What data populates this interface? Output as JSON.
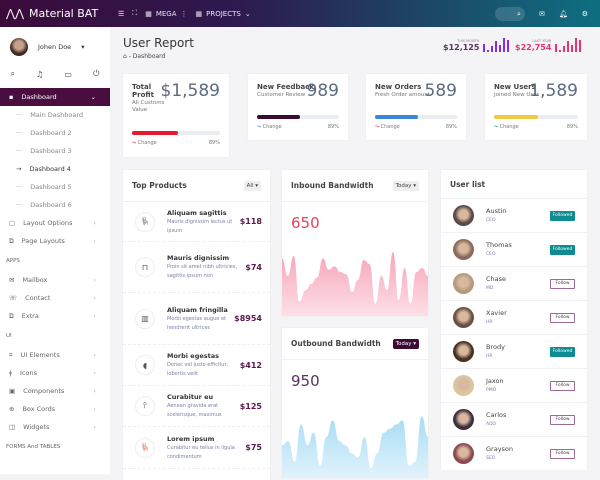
{
  "header": {
    "brand": "Material BAT",
    "mega": "MEGA",
    "projects": "PROJECTS",
    "colors": {
      "start": "#3b0b3a",
      "end": "#0e6f80"
    }
  },
  "sidebar": {
    "user": "Johen Doe",
    "items": [
      {
        "label": "Dashboard",
        "active": true
      },
      {
        "label": "Main Dashboard"
      },
      {
        "label": "Dashboard 2"
      },
      {
        "label": "Dashboard 3"
      },
      {
        "label": "Dashboard 4",
        "current": true
      },
      {
        "label": "Dashboard 5"
      },
      {
        "label": "Dashboard 6"
      },
      {
        "label": "Layout Options"
      },
      {
        "label": "Page Layouts"
      }
    ],
    "apps_title": "APPS",
    "apps": [
      {
        "label": "Mailbox"
      },
      {
        "label": "Contact"
      },
      {
        "label": "Extra"
      }
    ],
    "ui_title": "UI",
    "ui": [
      {
        "label": "UI Elements"
      },
      {
        "label": "Icons"
      },
      {
        "label": "Components"
      },
      {
        "label": "Box Cords"
      },
      {
        "label": "Widgets"
      }
    ],
    "forms_title": "FORMS And TABLES"
  },
  "page": {
    "title": "User Report",
    "breadcrumb": "Dashboard",
    "this_month": {
      "label": "THIS MONTH",
      "value": "$12,125",
      "color": "#8a2be2"
    },
    "last_year": {
      "label": "LAST YEAR",
      "value": "$22,754",
      "color": "#e8336d"
    }
  },
  "stats": [
    {
      "title": "Total Profit",
      "sub": "All Customs Value",
      "value": "$1,589",
      "progress": 0.52,
      "color": "#e8192c",
      "change": "Change",
      "pct": "89%"
    },
    {
      "title": "New Feedback",
      "sub": "Customer Review",
      "value": "989",
      "progress": 0.52,
      "color": "#3b0b36",
      "change": "Change",
      "pct": "89%"
    },
    {
      "title": "New Orders",
      "sub": "Fresh Order amount",
      "value": "589",
      "progress": 0.52,
      "color": "#3a86d8",
      "change": "Change",
      "pct": "89%"
    },
    {
      "title": "New Users",
      "sub": "Joined New User",
      "value": "1,589",
      "progress": 0.52,
      "color": "#f0c940",
      "change": "Change",
      "pct": "89%"
    }
  ],
  "products": {
    "title": "Top Products",
    "filter": "All",
    "items": [
      {
        "name": "Aliquam sagittis",
        "desc": "Mauris dignissim lectus ut ipsum",
        "price": "$118",
        "icon": "chair-icon"
      },
      {
        "name": "Mauris dignissim",
        "desc": "Proin sit amet nibh ultricies, sagittis ipsum non",
        "price": "$74",
        "icon": "table-icon"
      },
      {
        "name": "Aliquam fringilla",
        "desc": "Morbi egestas augue et hendrerit ultrices",
        "price": "$8954",
        "icon": "shelf-icon"
      },
      {
        "name": "Morbi egestas",
        "desc": "Donec vel justo efficitur, lobortis velit",
        "price": "$412",
        "icon": "armchair-icon"
      },
      {
        "name": "Curabitur eu",
        "desc": "Aenean gravida erat scelerisque, maximus",
        "price": "$125",
        "icon": "stool-icon"
      },
      {
        "name": "Lorem ipsum",
        "desc": "Curabitur eu tellus in ligula condimentum",
        "price": "$75",
        "icon": "orange-chair-icon"
      }
    ]
  },
  "inbound": {
    "title": "Inbound Bandwidth",
    "filter": "Today",
    "value": "650",
    "color": "#f7a5b8"
  },
  "outbound": {
    "title": "Outbound Bandwidth",
    "filter": "Today",
    "value": "950",
    "color": "#a8dcf5"
  },
  "chart_data": [
    {
      "type": "area",
      "values": [
        62,
        40,
        65,
        8,
        22,
        30,
        38,
        62,
        48,
        52,
        45,
        42,
        20,
        35,
        60,
        55,
        5,
        40,
        22,
        70,
        10,
        50,
        5,
        45,
        50,
        40
      ]
    },
    {
      "type": "area",
      "values": [
        30,
        35,
        10,
        55,
        30,
        45,
        5,
        40,
        60,
        35,
        30,
        20,
        15,
        40,
        2,
        20,
        45,
        50,
        55,
        60,
        5,
        10,
        65,
        40
      ]
    }
  ],
  "users": {
    "title": "User list",
    "items": [
      {
        "name": "Austin",
        "role": "CEO",
        "action": "Followed"
      },
      {
        "name": "Thomas",
        "role": "CEO",
        "action": "Followed"
      },
      {
        "name": "Chase",
        "role": "MD",
        "action": "Follow"
      },
      {
        "name": "Xavier",
        "role": "HR",
        "action": "Follow"
      },
      {
        "name": "Brody",
        "role": "HR",
        "action": "Followed"
      },
      {
        "name": "Jaxon",
        "role": "PMO",
        "action": "Follow"
      },
      {
        "name": "Carlos",
        "role": "ADO",
        "action": "Follow"
      },
      {
        "name": "Grayson",
        "role": "SEO",
        "action": "Follow"
      }
    ]
  }
}
